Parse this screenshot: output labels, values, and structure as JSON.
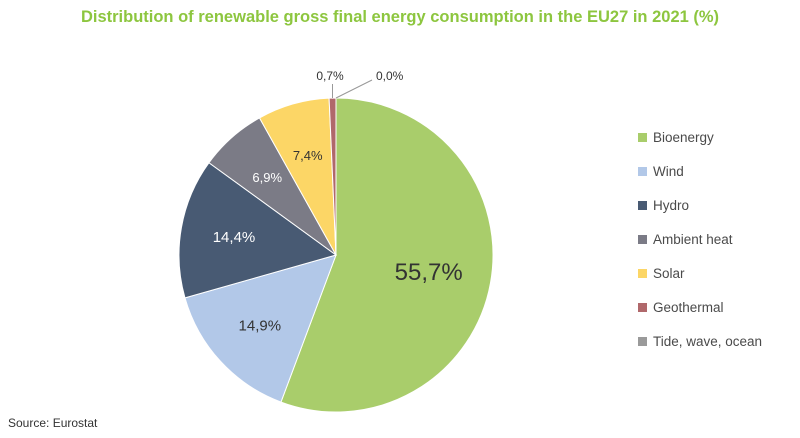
{
  "chart_data": {
    "type": "pie",
    "title": "Distribution of renewable gross final energy consumption in the EU27 in 2021 (%)",
    "categories": [
      "Bioenergy",
      "Wind",
      "Hydro",
      "Ambient heat",
      "Solar",
      "Geothermal",
      "Tide, wave, ocean"
    ],
    "values": [
      55.7,
      14.9,
      14.4,
      6.9,
      7.4,
      0.7,
      0.0
    ],
    "labels": [
      "55,7%",
      "14,9%",
      "14,4%",
      "6,9%",
      "7,4%",
      "0,7%",
      "0,0%"
    ],
    "colors": [
      "#a9cd6b",
      "#b2c8e8",
      "#485a73",
      "#7b7b86",
      "#fcd666",
      "#b0686b",
      "#9a9a9a"
    ],
    "legend": "right",
    "source": "Source: Eurostat"
  }
}
